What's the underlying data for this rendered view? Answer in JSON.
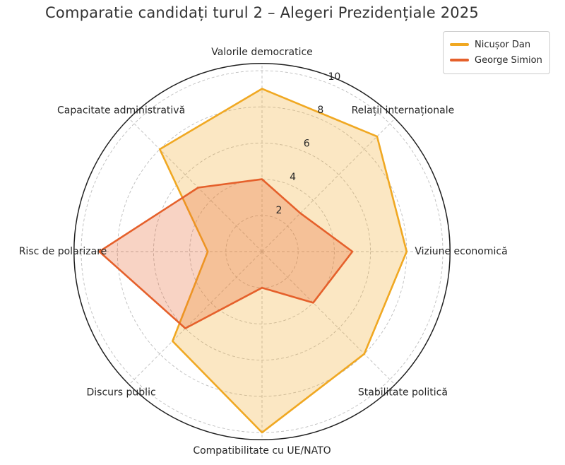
{
  "title": "Comparatie candidați turul 2 – Alegeri Prezidențiale 2025",
  "legend": {
    "position": "upper right",
    "items": [
      {
        "label": "Nicușor Dan",
        "color": "#F0A822"
      },
      {
        "label": "George Simion",
        "color": "#E5602B"
      }
    ]
  },
  "chart_data": {
    "type": "radar",
    "title": "Comparatie candidați turul 2 – Alegeri Prezidențiale 2025",
    "categories": [
      "Valorile democratice",
      "Relații internaționale",
      "Viziune economică",
      "Stabilitate politică",
      "Compatibilitate cu UE/NATO",
      "Discurs public",
      "Risc de polarizare",
      "Capacitate administrativă"
    ],
    "category_order": "clockwise-from-top",
    "series": [
      {
        "name": "Nicușor Dan",
        "color": "#F0A822",
        "fill_alpha": 0.27,
        "values": [
          9,
          9,
          8,
          8,
          10,
          7,
          3,
          8
        ]
      },
      {
        "name": "George Simion",
        "color": "#E5602B",
        "fill_alpha": 0.28,
        "values": [
          4,
          3,
          5,
          4,
          2,
          6,
          9,
          5
        ]
      }
    ],
    "radial_ticks": [
      2,
      4,
      6,
      8,
      10
    ],
    "r_range": [
      0,
      10.4
    ],
    "grid": true,
    "grid_style": "dashed",
    "grid_color": "#bdbdbd",
    "outline_color": "#1f1f1f",
    "text_color": "#262626",
    "legend_position": "upper right"
  }
}
